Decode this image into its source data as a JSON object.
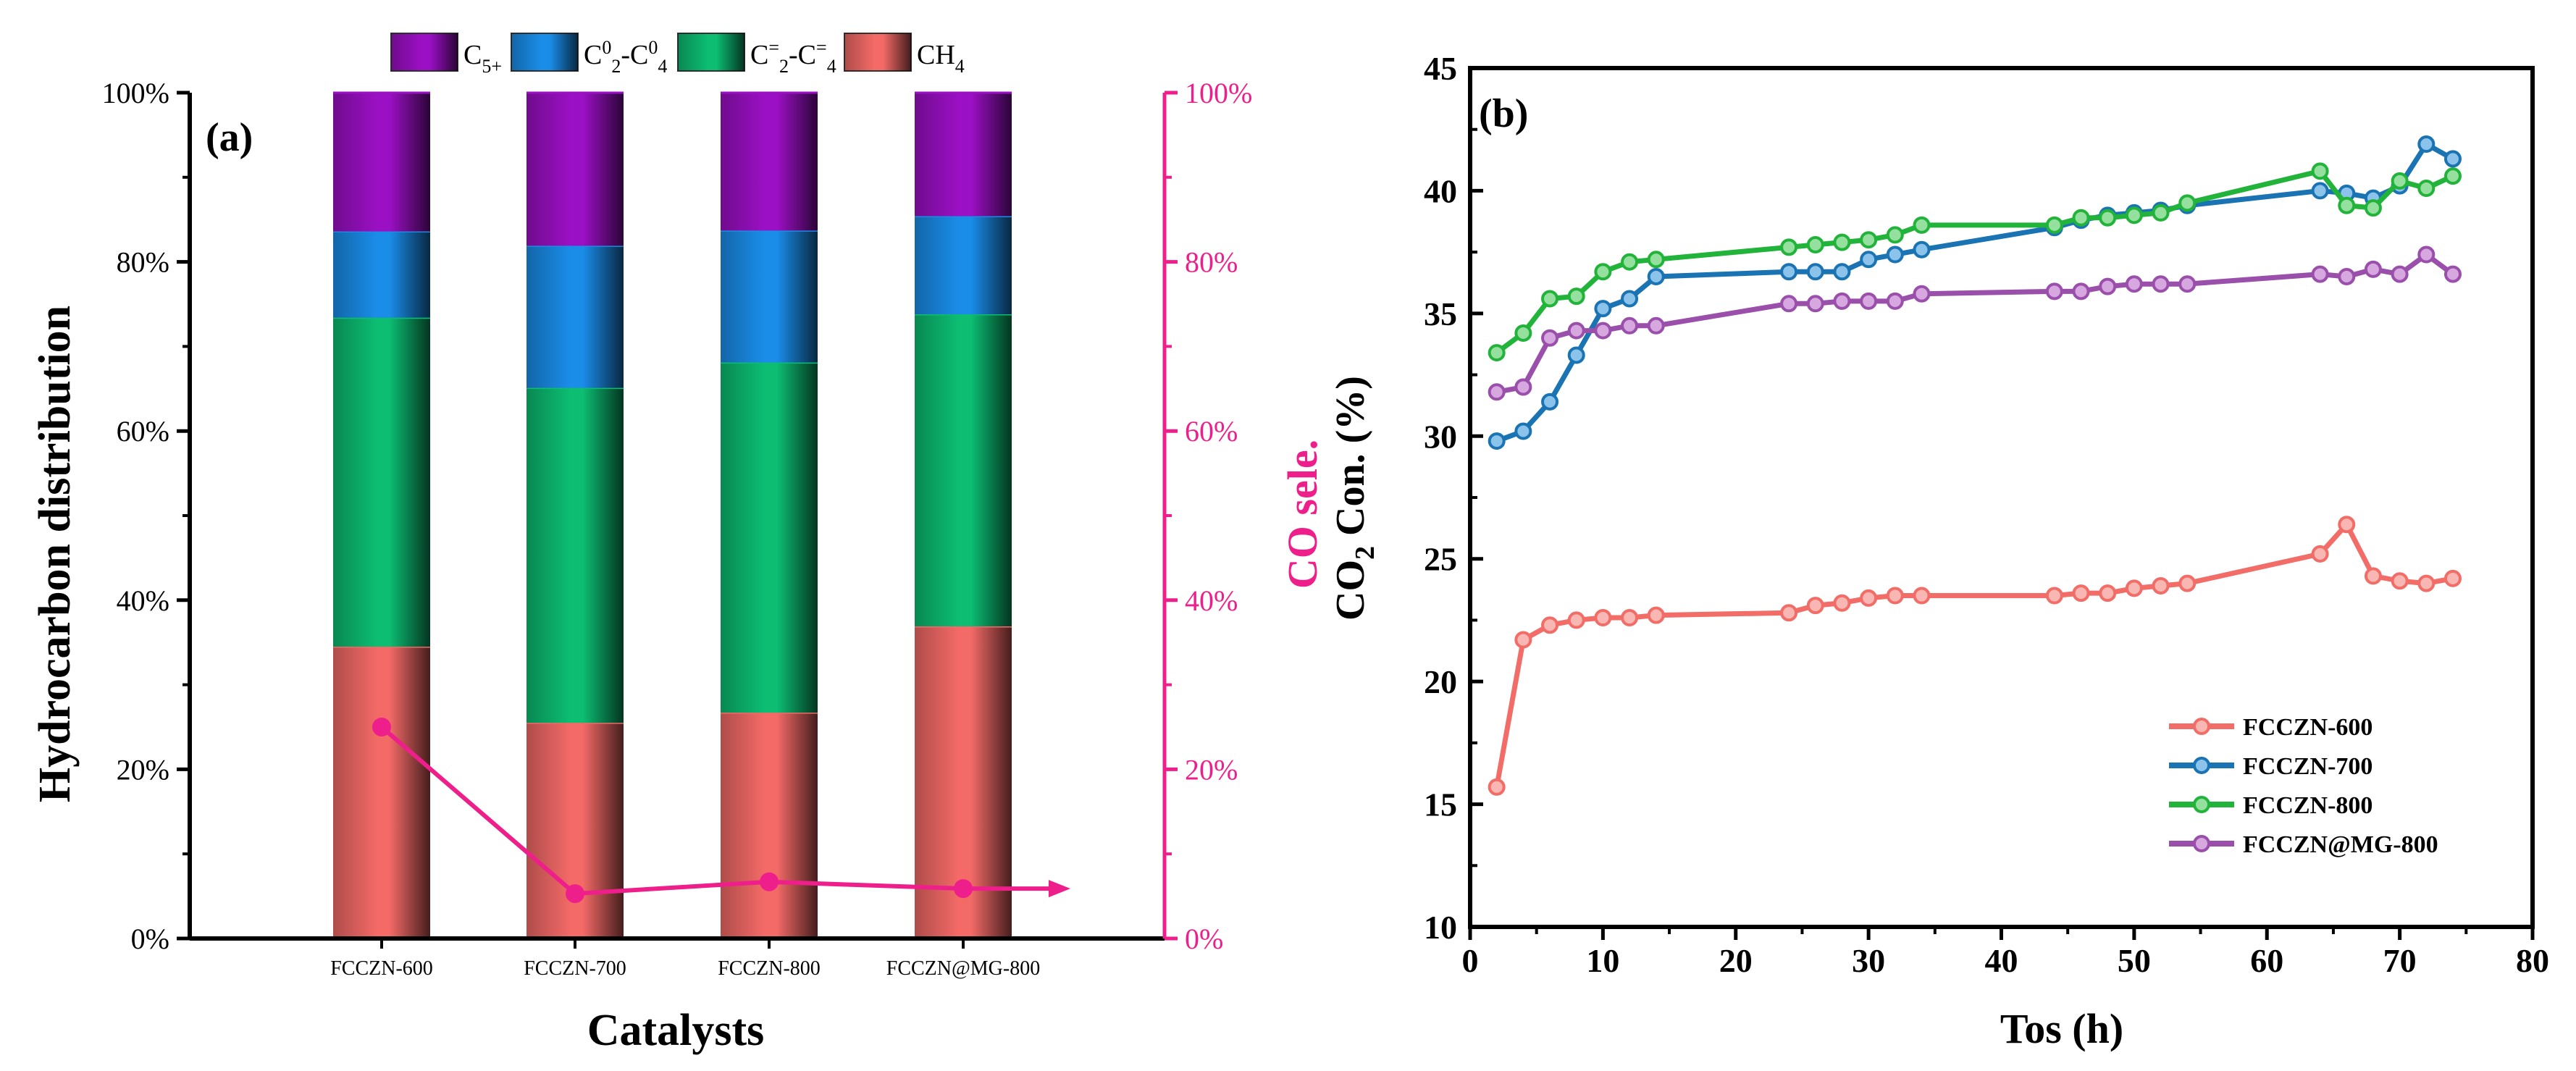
{
  "chart_data": [
    {
      "type": "bar",
      "panel_label": "(a)",
      "stacked": true,
      "xlabel": "Catalysts",
      "ylabel": "Hydrocarbon distribution",
      "ylabel_right": "CO sele.",
      "ylim": [
        0,
        100
      ],
      "yticks": [
        "0%",
        "20%",
        "40%",
        "60%",
        "80%",
        "100%"
      ],
      "yticks_right": [
        "0%",
        "20%",
        "40%",
        "60%",
        "80%",
        "100%"
      ],
      "categories": [
        "FCCZN-600",
        "FCCZN-700",
        "FCCZN-800",
        "FCCZN@MG-800"
      ],
      "legend": {
        "placement": "top",
        "entries": [
          {
            "main": "C",
            "sub": "5+",
            "sup": "",
            "main2": "",
            "sub2": "",
            "sup2": "",
            "color": "#9b10c4"
          },
          {
            "main": "C",
            "sub": "2",
            "sup": "0",
            "main2": "-C",
            "sub2": "4",
            "sup2": "0",
            "color": "#1a8de9"
          },
          {
            "main": "C",
            "sub": "2",
            "sup": "=",
            "main2": "-C",
            "sub2": "4",
            "sup2": "=",
            "color": "#0cbd72"
          },
          {
            "main": "CH",
            "sub": "4",
            "sup": "",
            "main2": "",
            "sub2": "",
            "sup2": "",
            "color": "#f36a67"
          }
        ]
      },
      "series": [
        {
          "name": "CH4",
          "color": "#f36a67",
          "values": [
            34.5,
            25.5,
            26.7,
            36.9
          ]
        },
        {
          "name": "C2=-C4=",
          "color": "#0cbd72",
          "values": [
            38.9,
            39.6,
            41.4,
            36.9
          ]
        },
        {
          "name": "C20-C40",
          "color": "#1a8de9",
          "values": [
            10.2,
            16.8,
            15.6,
            11.6
          ]
        },
        {
          "name": "C5+",
          "color": "#9b10c4",
          "values": [
            16.4,
            18.1,
            16.3,
            14.6
          ]
        }
      ],
      "secondary_line": {
        "name": "CO sele.",
        "color": "#ee1f8a",
        "values": [
          25.0,
          5.3,
          6.7,
          5.9
        ],
        "arrow_end_value": 5.9
      }
    },
    {
      "type": "line",
      "panel_label": "(b)",
      "xlabel": "Tos (h)",
      "ylabel_main": "CO",
      "ylabel_sub": "2",
      "ylabel_rest": " Con. (%)",
      "xlim": [
        0,
        80
      ],
      "ylim": [
        10,
        45
      ],
      "xticks": [
        "0",
        "10",
        "20",
        "30",
        "40",
        "50",
        "60",
        "70",
        "80"
      ],
      "yticks": [
        "10",
        "15",
        "20",
        "25",
        "30",
        "35",
        "40",
        "45"
      ],
      "legend_placement": "bottom-right",
      "series": [
        {
          "name": "FCCZN-600",
          "color": "#f26d67",
          "marker_fill": "#f8b7b3",
          "x": [
            2,
            4,
            6,
            8,
            10,
            12,
            14,
            24,
            26,
            28,
            30,
            32,
            34,
            44,
            46,
            48,
            50,
            52,
            54,
            64,
            66,
            68,
            70,
            72,
            74
          ],
          "y": [
            15.7,
            21.7,
            22.3,
            22.5,
            22.6,
            22.6,
            22.7,
            22.8,
            23.1,
            23.2,
            23.4,
            23.5,
            23.5,
            23.5,
            23.6,
            23.6,
            23.8,
            23.9,
            24.0,
            25.2,
            26.4,
            24.3,
            24.1,
            24.0,
            24.2
          ]
        },
        {
          "name": "FCCZN-700",
          "color": "#1a73b3",
          "marker_fill": "#8cc3ea",
          "x": [
            2,
            4,
            6,
            8,
            10,
            12,
            14,
            24,
            26,
            28,
            30,
            32,
            34,
            44,
            46,
            48,
            50,
            52,
            54,
            64,
            66,
            68,
            70,
            72,
            74
          ],
          "y": [
            29.8,
            30.2,
            31.4,
            33.3,
            35.2,
            35.6,
            36.5,
            36.7,
            36.7,
            36.7,
            37.2,
            37.4,
            37.6,
            38.5,
            38.8,
            39.0,
            39.1,
            39.2,
            39.4,
            40.0,
            39.9,
            39.7,
            40.2,
            41.9,
            41.3
          ]
        },
        {
          "name": "FCCZN-800",
          "color": "#22b43a",
          "marker_fill": "#95e09f",
          "x": [
            2,
            4,
            6,
            8,
            10,
            12,
            14,
            24,
            26,
            28,
            30,
            32,
            34,
            44,
            46,
            48,
            50,
            52,
            54,
            64,
            66,
            68,
            70,
            72,
            74
          ],
          "y": [
            33.4,
            34.2,
            35.6,
            35.7,
            36.7,
            37.1,
            37.2,
            37.7,
            37.8,
            37.9,
            38.0,
            38.2,
            38.6,
            38.6,
            38.9,
            38.9,
            39.0,
            39.1,
            39.5,
            40.8,
            39.4,
            39.3,
            40.4,
            40.1,
            40.6
          ]
        },
        {
          "name": "FCCZN@MG-800",
          "color": "#9a4fab",
          "marker_fill": "#d7a8e0",
          "x": [
            2,
            4,
            6,
            8,
            10,
            12,
            14,
            24,
            26,
            28,
            30,
            32,
            34,
            44,
            46,
            48,
            50,
            52,
            54,
            64,
            66,
            68,
            70,
            72,
            74
          ],
          "y": [
            31.8,
            32.0,
            34.0,
            34.3,
            34.3,
            34.5,
            34.5,
            35.4,
            35.4,
            35.5,
            35.5,
            35.5,
            35.8,
            35.9,
            35.9,
            36.1,
            36.2,
            36.2,
            36.2,
            36.6,
            36.5,
            36.8,
            36.6,
            37.4,
            36.6
          ]
        }
      ]
    }
  ]
}
